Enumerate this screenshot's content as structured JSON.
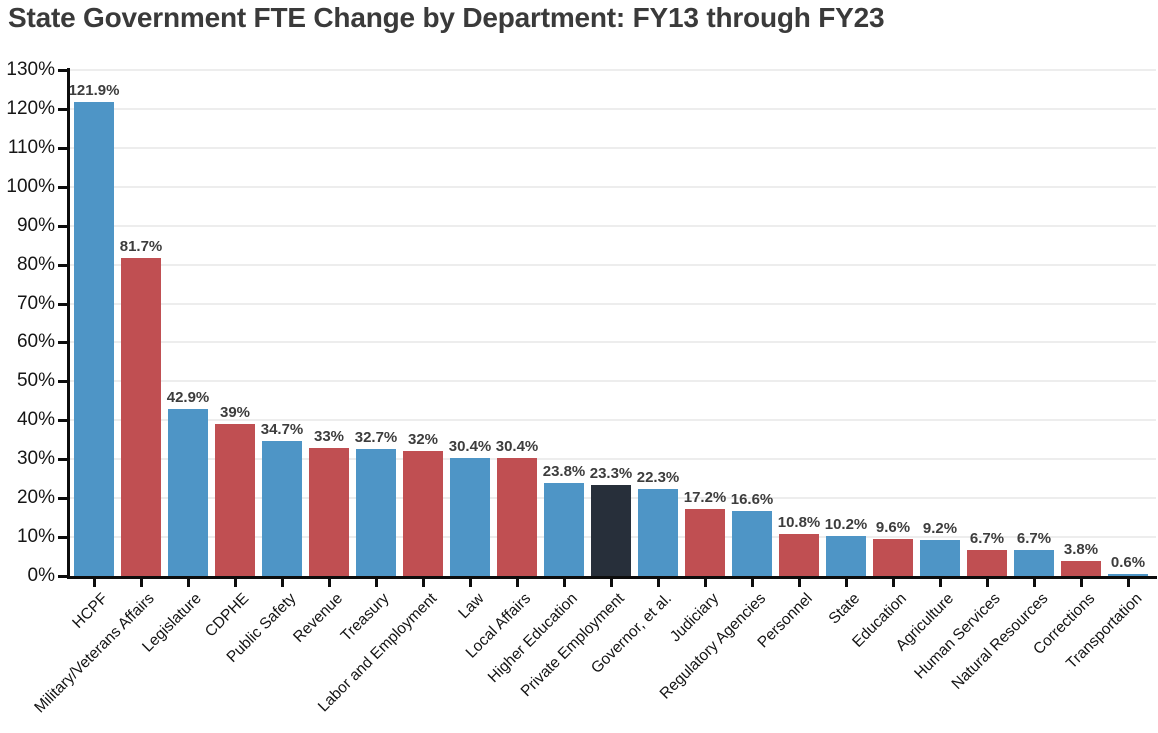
{
  "chart_data": {
    "type": "bar",
    "title": "State Government FTE Change by Department: FY13 through FY23",
    "xlabel": "",
    "ylabel": "",
    "ylim": [
      0,
      130
    ],
    "grid": true,
    "legend": "none",
    "ytick_labels": [
      "0%",
      "10%",
      "20%",
      "30%",
      "40%",
      "50%",
      "60%",
      "70%",
      "80%",
      "90%",
      "100%",
      "110%",
      "120%",
      "130%"
    ],
    "ytick_values": [
      0,
      10,
      20,
      30,
      40,
      50,
      60,
      70,
      80,
      90,
      100,
      110,
      120,
      130
    ],
    "categories": [
      "HCPF",
      "Military/Veterans Affairs",
      "Legislature",
      "CDPHE",
      "Public Safety",
      "Revenue",
      "Treasury",
      "Labor and Employment",
      "Law",
      "Local Affairs",
      "Higher Education",
      "Private Employment",
      "Governor, et al.",
      "Judiciary",
      "Regulatory Agencies",
      "Personnel",
      "State",
      "Education",
      "Agriculture",
      "Human Services",
      "Natural Resources",
      "Corrections",
      "Transportation"
    ],
    "values": [
      121.9,
      81.7,
      42.9,
      39,
      34.7,
      33,
      32.7,
      32,
      30.4,
      30.4,
      23.8,
      23.3,
      22.3,
      17.2,
      16.6,
      10.8,
      10.2,
      9.6,
      9.2,
      6.7,
      6.7,
      3.8,
      0.6
    ],
    "value_labels": [
      "121.9%",
      "81.7%",
      "42.9%",
      "39%",
      "34.7%",
      "33%",
      "32.7%",
      "32%",
      "30.4%",
      "30.4%",
      "23.8%",
      "23.3%",
      "22.3%",
      "17.2%",
      "16.6%",
      "10.8%",
      "10.2%",
      "9.6%",
      "9.2%",
      "6.7%",
      "6.7%",
      "3.8%",
      "0.6%"
    ],
    "bar_color_keys": [
      "blue",
      "red",
      "blue",
      "red",
      "blue",
      "red",
      "blue",
      "red",
      "blue",
      "red",
      "blue",
      "dark",
      "blue",
      "red",
      "blue",
      "red",
      "blue",
      "red",
      "blue",
      "red",
      "blue",
      "red",
      "blue"
    ],
    "palette": {
      "blue": "#4e95c6",
      "red": "#c04f52",
      "dark": "#272f3a"
    },
    "text_colors": {
      "title": "#3a3a3a",
      "axis_text": "#161616",
      "value_label": "#3d3d3d"
    }
  }
}
